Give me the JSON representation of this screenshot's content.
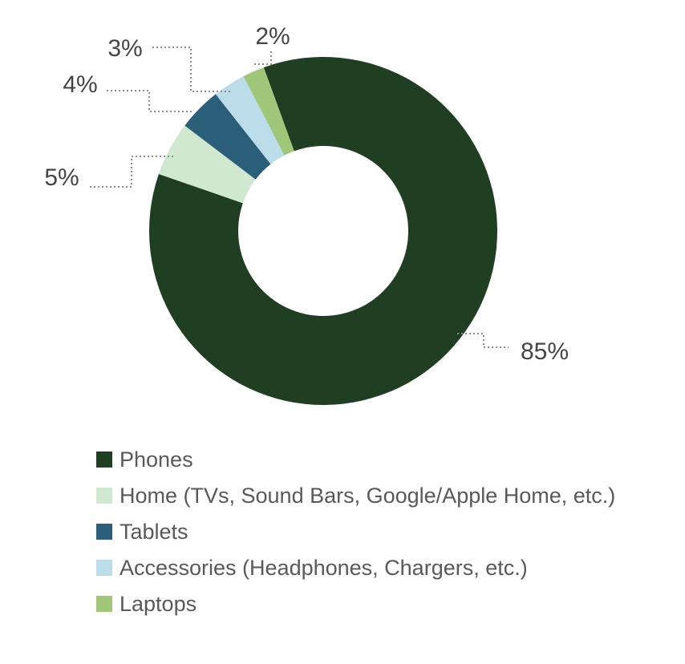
{
  "style": {
    "background": "#ffffff",
    "label_color": "#454545",
    "legend_text_color": "#595959",
    "leader_line_color": "#8c8c8c"
  },
  "chart_data": {
    "type": "pie",
    "subtype": "donut",
    "title": "",
    "unit": "%",
    "rotation_deg": -20,
    "donut_hole_ratio": 0.49,
    "legend_position": "bottom-left",
    "labels_outside": true,
    "leader_lines": "dotted-stepped",
    "categories": [
      "Phones",
      "Home (TVs, Sound Bars, Google/Apple Home, etc.)",
      "Tablets",
      "Accessories (Headphones, Chargers, etc.)",
      "Laptops"
    ],
    "values": [
      85,
      5,
      4,
      3,
      2
    ],
    "slices": [
      {
        "name": "Phones",
        "value": 85,
        "label": "85%",
        "color": "#1f3e22",
        "legend_label": "Phones"
      },
      {
        "name": "Home",
        "value": 5,
        "label": "5%",
        "color": "#d0e7d0",
        "legend_label": "Home (TVs, Sound Bars, Google/Apple Home, etc.)"
      },
      {
        "name": "Tablets",
        "value": 4,
        "label": "4%",
        "color": "#2b5e78",
        "legend_label": "Tablets"
      },
      {
        "name": "Accessories",
        "value": 3,
        "label": "3%",
        "color": "#bbddea",
        "legend_label": "Accessories (Headphones, Chargers, etc.)"
      },
      {
        "name": "Laptops",
        "value": 2,
        "label": "2%",
        "color": "#a0c779",
        "legend_label": "Laptops"
      }
    ]
  }
}
